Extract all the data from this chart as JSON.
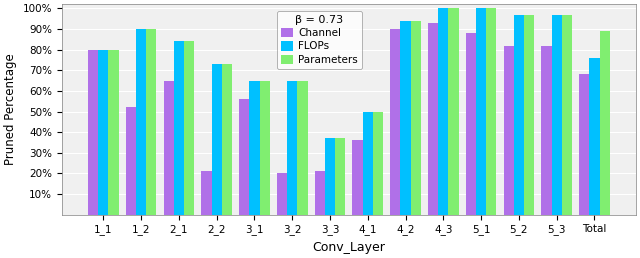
{
  "categories": [
    "1_1",
    "1_2",
    "2_1",
    "2_2",
    "3_1",
    "3_2",
    "3_3",
    "4_1",
    "4_2",
    "4_3",
    "5_1",
    "5_2",
    "5_3",
    "Total"
  ],
  "channel": [
    0.8,
    0.52,
    0.65,
    0.21,
    0.56,
    0.2,
    0.21,
    0.36,
    0.9,
    0.93,
    0.88,
    0.82,
    0.82,
    0.68
  ],
  "flops": [
    0.8,
    0.9,
    0.84,
    0.73,
    0.65,
    0.65,
    0.37,
    0.5,
    0.94,
    1.0,
    1.0,
    0.97,
    0.97,
    0.76
  ],
  "params": [
    0.8,
    0.9,
    0.84,
    0.73,
    0.65,
    0.65,
    0.37,
    0.5,
    0.94,
    1.0,
    1.0,
    0.97,
    0.97,
    0.89
  ],
  "channel_color": "#b070e8",
  "flops_color": "#00c0ff",
  "params_color": "#80ee70",
  "legend_title": "β = 0.73",
  "ylabel": "Pruned Percentage",
  "xlabel": "Conv_Layer",
  "ylim_min": 0.0,
  "ylim_max": 1.02,
  "yticks": [
    0.1,
    0.2,
    0.3,
    0.4,
    0.5,
    0.6,
    0.7,
    0.8,
    0.9,
    1.0
  ],
  "ytick_labels": [
    "10%",
    "20%",
    "30%",
    "40%",
    "50%",
    "60%",
    "70%",
    "80%",
    "90%",
    "100%"
  ],
  "legend_labels": [
    "Channel",
    "FLOPs",
    "Parameters"
  ],
  "bar_width": 0.27,
  "figsize": [
    6.4,
    2.58
  ],
  "dpi": 100
}
